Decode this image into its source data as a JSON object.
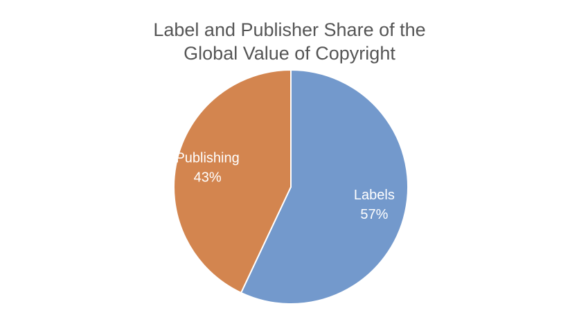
{
  "chart_data": {
    "type": "pie",
    "title": "Label and Publisher Share of the Global Value of Copyright",
    "categories": [
      "Labels",
      "Publishing"
    ],
    "values": [
      57,
      43
    ],
    "value_labels": [
      "57%",
      "43%"
    ],
    "colors": [
      "#7399cc",
      "#d3854f"
    ]
  }
}
